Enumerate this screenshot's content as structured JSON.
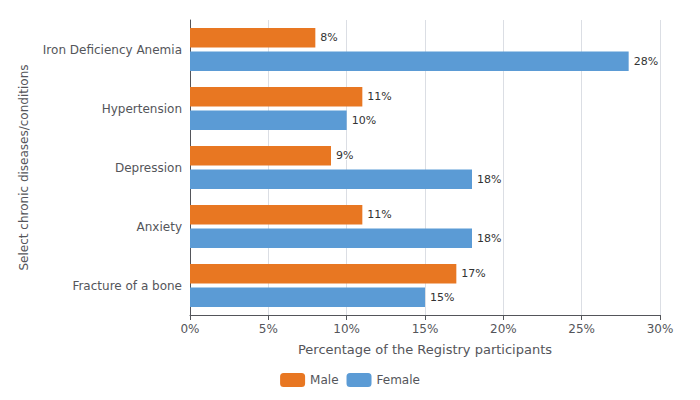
{
  "chart_data": {
    "type": "bar",
    "orientation": "horizontal",
    "xlabel": "Percentage of the Registry participants",
    "ylabel": "Select chronic diseases/conditions",
    "categories": [
      "Iron Deficiency Anemia",
      "Hypertension",
      "Depression",
      "Anxiety",
      "Fracture of a bone"
    ],
    "series": [
      {
        "name": "Male",
        "color": "#E87722",
        "values": [
          8,
          11,
          9,
          11,
          17
        ],
        "value_labels": [
          "8%",
          "11%",
          "9%",
          "11%",
          "17%"
        ]
      },
      {
        "name": "Female",
        "color": "#5B9BD5",
        "values": [
          28,
          10,
          18,
          18,
          15
        ],
        "value_labels": [
          "28%",
          "10%",
          "18%",
          "18%",
          "15%"
        ]
      }
    ],
    "xlim": [
      0,
      30
    ],
    "xticks": [
      {
        "value": 0,
        "label": "0%"
      },
      {
        "value": 5,
        "label": "5%"
      },
      {
        "value": 10,
        "label": "10%"
      },
      {
        "value": 15,
        "label": "15%"
      },
      {
        "value": 20,
        "label": "20%"
      },
      {
        "value": 25,
        "label": "25%"
      },
      {
        "value": 30,
        "label": "30%"
      }
    ],
    "data_labels": true,
    "grid": true,
    "legend": "bottom"
  }
}
